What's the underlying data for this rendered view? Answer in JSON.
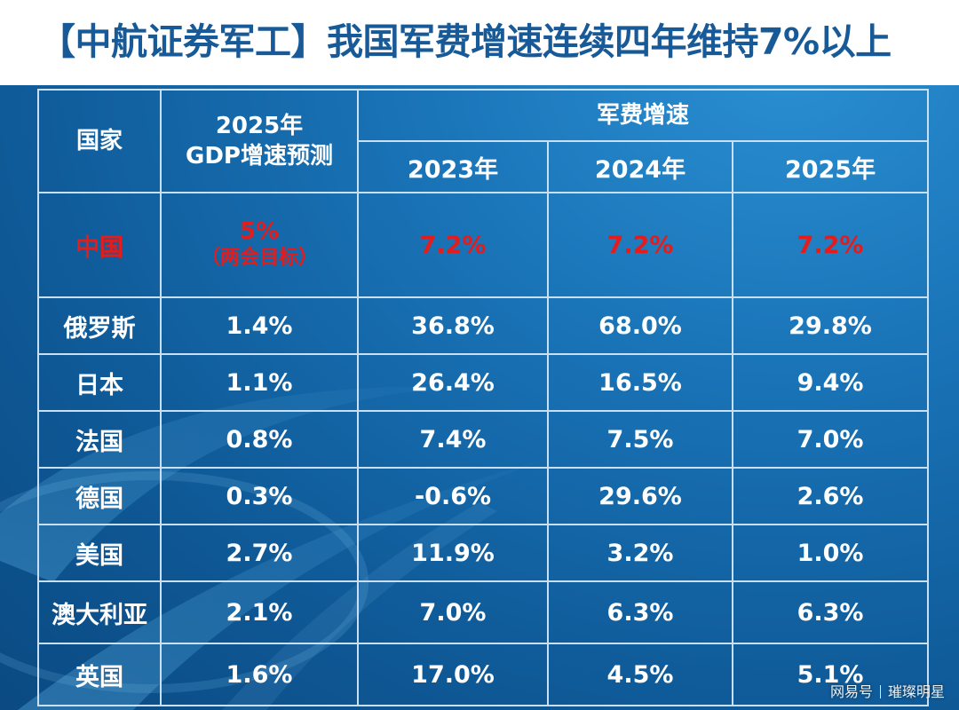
{
  "title": "【中航证券军工】我国军费增速连续四年维持7%以上",
  "table": {
    "header": {
      "country": "国家",
      "gdp": "2025年\nGDP增速预测",
      "military_group": "军费增速",
      "years": [
        "2023年",
        "2024年",
        "2025年"
      ]
    },
    "china": {
      "country": "中国",
      "gdp_value": "5%",
      "gdp_note": "（两会目标）",
      "values": [
        "7.2%",
        "7.2%",
        "7.2%"
      ]
    },
    "rows": [
      {
        "country": "俄罗斯",
        "gdp": "1.4%",
        "values": [
          "36.8%",
          "68.0%",
          "29.8%"
        ]
      },
      {
        "country": "日本",
        "gdp": "1.1%",
        "values": [
          "26.4%",
          "16.5%",
          "9.4%"
        ]
      },
      {
        "country": "法国",
        "gdp": "0.8%",
        "values": [
          "7.4%",
          "7.5%",
          "7.0%"
        ]
      },
      {
        "country": "德国",
        "gdp": "0.3%",
        "values": [
          "-0.6%",
          "29.6%",
          "2.6%"
        ]
      },
      {
        "country": "美国",
        "gdp": "2.7%",
        "values": [
          "11.9%",
          "3.2%",
          "1.0%"
        ]
      },
      {
        "country": "澳大利亚",
        "gdp": "2.1%",
        "values": [
          "7.0%",
          "6.3%",
          "6.3%"
        ]
      },
      {
        "country": "英国",
        "gdp": "1.6%",
        "values": [
          "17.0%",
          "4.5%",
          "5.1%"
        ]
      }
    ]
  },
  "watermark": {
    "source": "网易号",
    "author": "璀璨明星"
  },
  "colors": {
    "title": "#185a97",
    "highlight": "#e41c1c",
    "background": "#1466a8",
    "grid": "#c9dff2"
  }
}
